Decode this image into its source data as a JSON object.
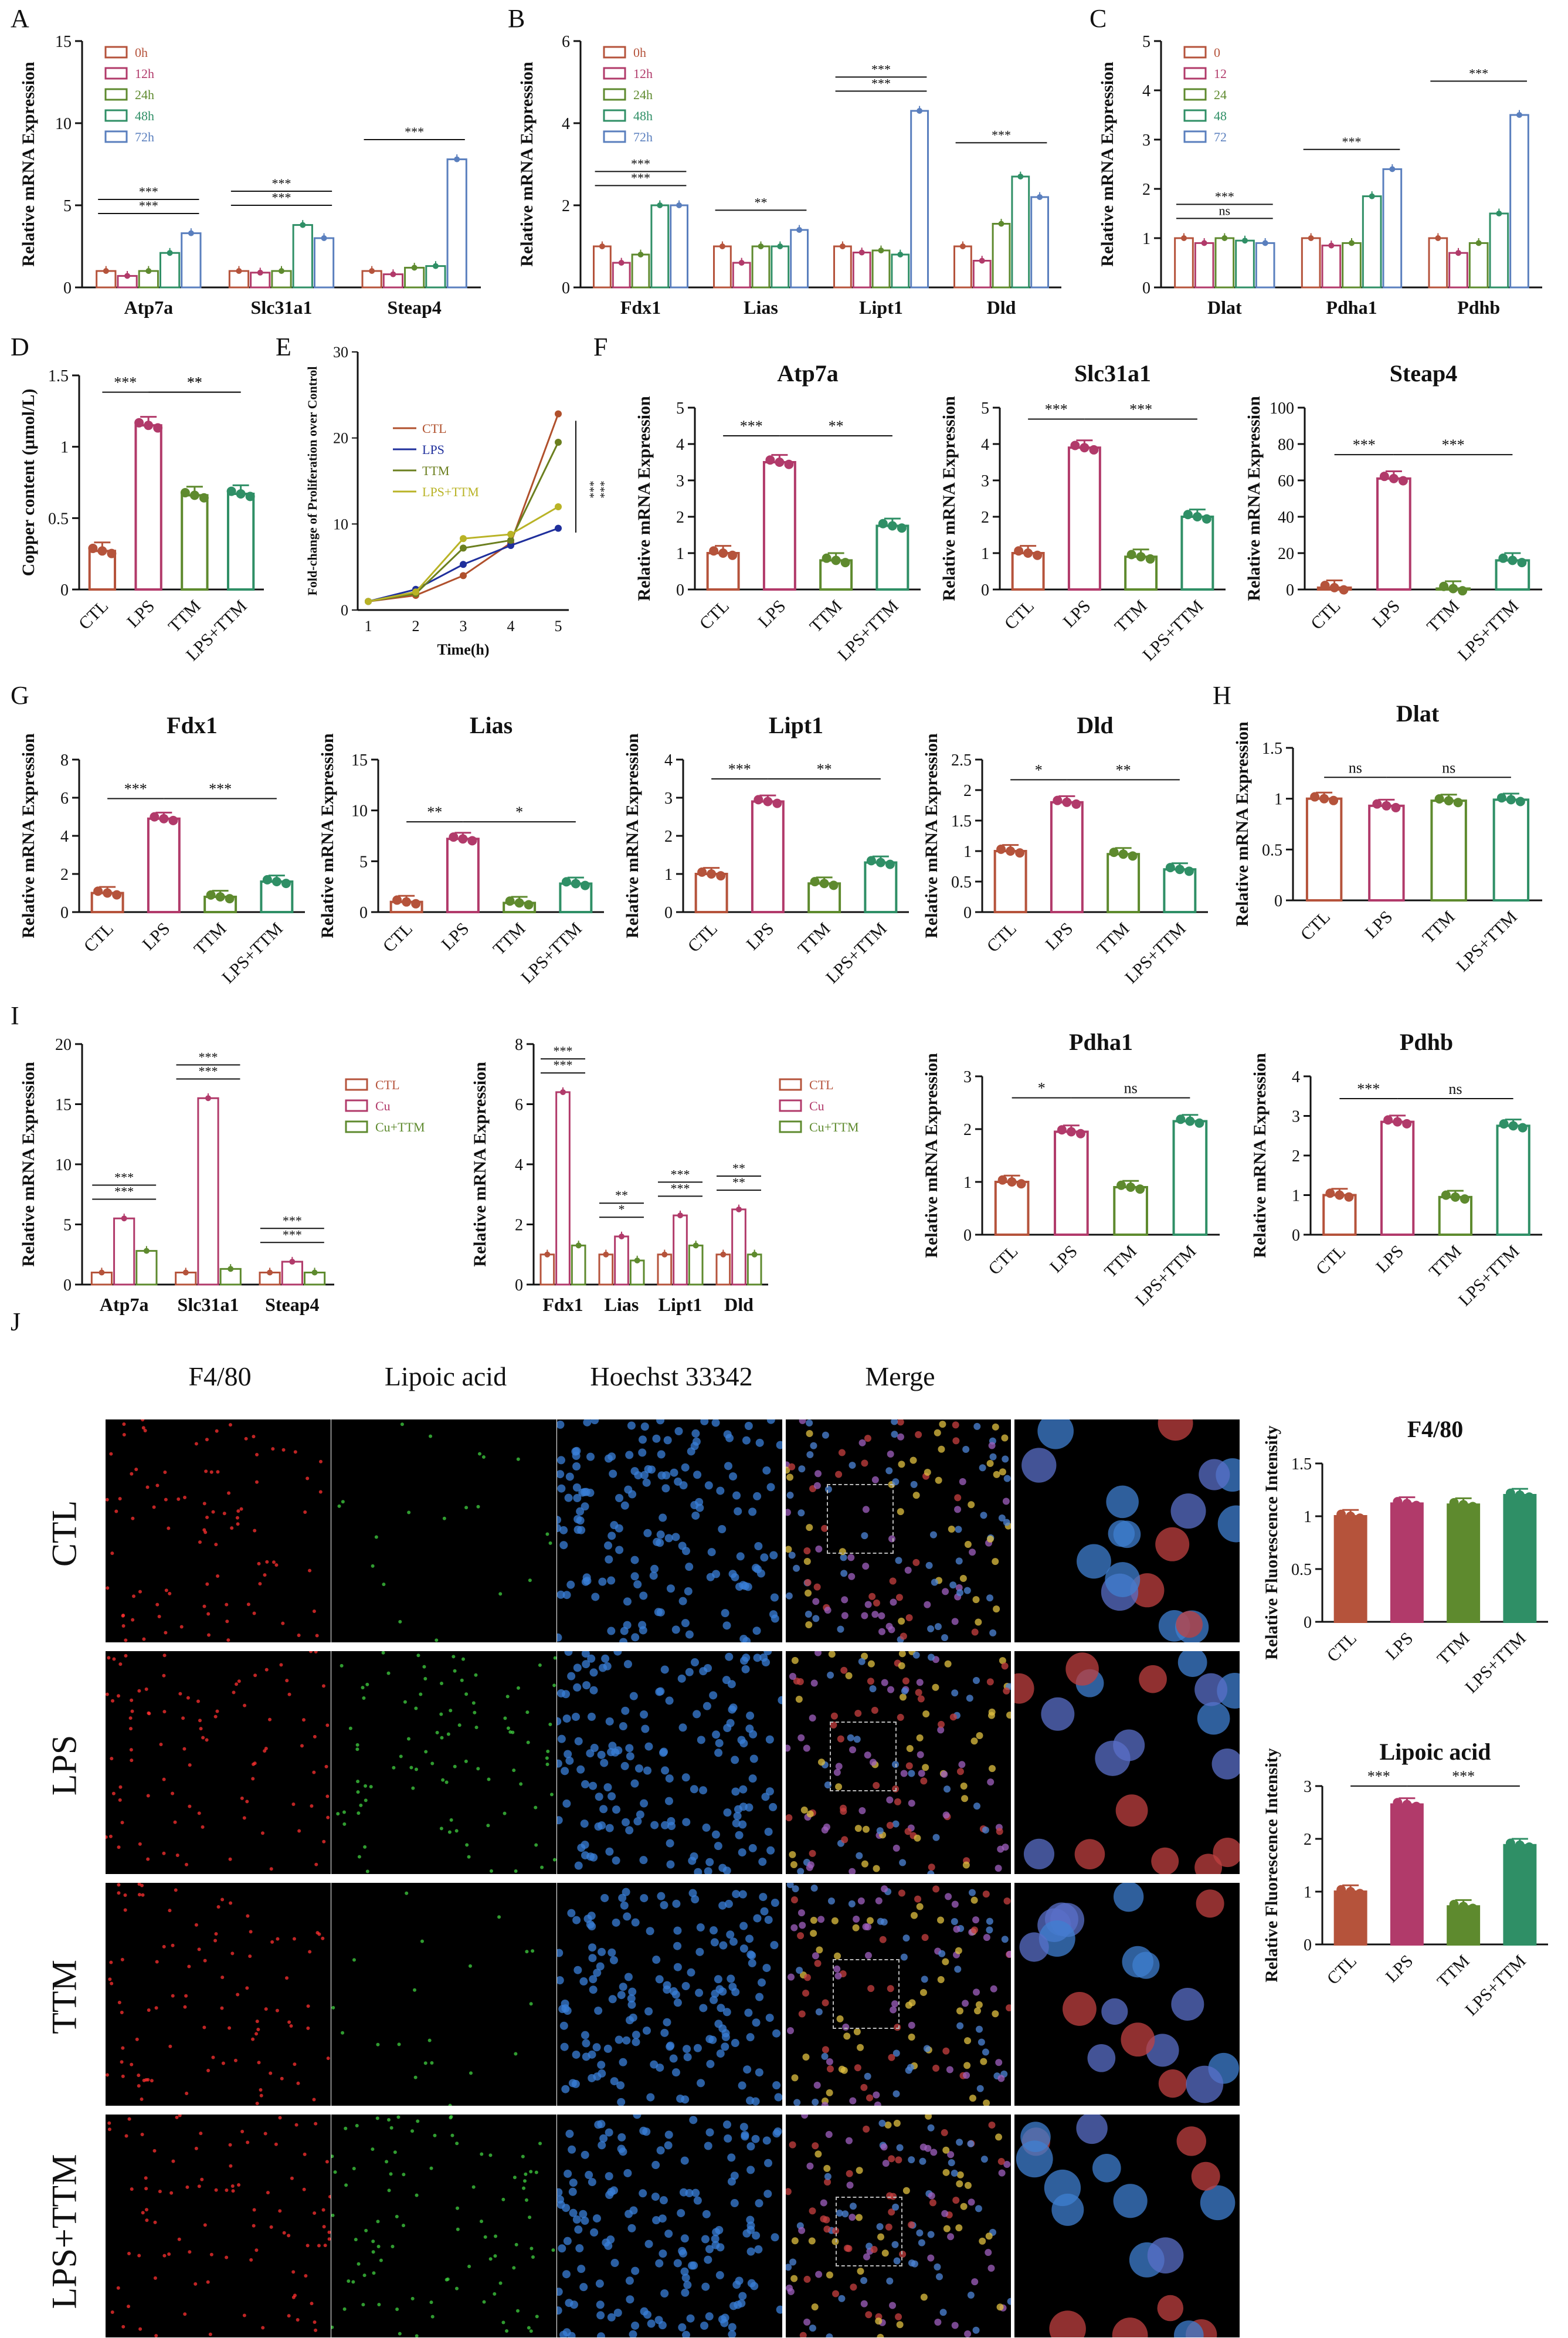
{
  "panel_letters": {
    "A": "A",
    "B": "B",
    "C": "C",
    "D": "D",
    "E": "E",
    "F": "F",
    "G": "G",
    "H": "H",
    "I": "I",
    "J": "J"
  },
  "palette": {
    "red": "#b5533b",
    "pink": "#b13a6a",
    "olive": "#5e8a2e",
    "green": "#2f8f66",
    "blue": "#5a7fbe",
    "navy": "#1f2f9c",
    "olive_line": "#6b7f1f",
    "yellow_line": "#b9b326",
    "brown_line": "#b0502c"
  },
  "micro": {
    "columns": [
      "F4/80",
      "Lipoic acid",
      "Hoechst 33342",
      "Merge"
    ],
    "rows": [
      "CTL",
      "LPS",
      "TTM",
      "LPS+TTM"
    ]
  },
  "chart_data": [
    {
      "id": "A",
      "type": "bar",
      "title": "",
      "ylabel": "Relative mRNA Expression",
      "ylim": [
        0,
        15
      ],
      "yticks": [
        0,
        5,
        10,
        15
      ],
      "categories": [
        "Atp7a",
        "Slc31a1",
        "Steap4"
      ],
      "series": [
        {
          "name": "0h",
          "values": [
            1,
            1,
            1
          ]
        },
        {
          "name": "12h",
          "values": [
            0.7,
            0.9,
            0.8
          ]
        },
        {
          "name": "24h",
          "values": [
            1,
            1,
            1.2
          ]
        },
        {
          "name": "48h",
          "values": [
            2.1,
            3.8,
            1.3
          ]
        },
        {
          "name": "72h",
          "values": [
            3.3,
            3.0,
            7.8
          ]
        }
      ],
      "annotations": [
        "***",
        "***",
        "***",
        "***",
        "***"
      ],
      "legend": "top-left"
    },
    {
      "id": "B",
      "type": "bar",
      "title": "",
      "ylabel": "Relative mRNA Expression",
      "ylim": [
        0,
        6
      ],
      "yticks": [
        0,
        2,
        4,
        6
      ],
      "categories": [
        "Fdx1",
        "Lias",
        "Lipt1",
        "Dld"
      ],
      "series": [
        {
          "name": "0h",
          "values": [
            1,
            1,
            1,
            1
          ]
        },
        {
          "name": "12h",
          "values": [
            0.6,
            0.6,
            0.85,
            0.65
          ]
        },
        {
          "name": "24h",
          "values": [
            0.8,
            1.0,
            0.9,
            1.55
          ]
        },
        {
          "name": "48h",
          "values": [
            2.0,
            1.0,
            0.8,
            2.7
          ]
        },
        {
          "name": "72h",
          "values": [
            2.0,
            1.4,
            4.3,
            2.2
          ]
        }
      ],
      "annotations": [
        "***",
        "***",
        "**",
        "***",
        "***",
        "***"
      ],
      "legend": "top-left"
    },
    {
      "id": "C",
      "type": "bar",
      "title": "",
      "ylabel": "Relative mRNA Expression",
      "ylim": [
        0,
        5
      ],
      "yticks": [
        0,
        1,
        2,
        3,
        4,
        5
      ],
      "categories": [
        "Dlat",
        "Pdha1",
        "Pdhb"
      ],
      "series": [
        {
          "name": "0",
          "values": [
            1,
            1,
            1
          ]
        },
        {
          "name": "12",
          "values": [
            0.9,
            0.85,
            0.7
          ]
        },
        {
          "name": "24",
          "values": [
            1,
            0.9,
            0.9
          ]
        },
        {
          "name": "48",
          "values": [
            0.95,
            1.85,
            1.5
          ]
        },
        {
          "name": "72",
          "values": [
            0.9,
            2.4,
            3.5
          ]
        }
      ],
      "annotations": [
        "ns",
        "***",
        "***",
        "***"
      ],
      "legend": "top-left"
    },
    {
      "id": "D",
      "type": "bar",
      "title": "",
      "ylabel": "Copper content (μmol/L)",
      "ylim": [
        0,
        1.5
      ],
      "yticks": [
        0,
        0.5,
        1,
        1.5
      ],
      "categories": [
        "CTL",
        "LPS",
        "TTM",
        "LPS+TTM"
      ],
      "values": [
        0.27,
        1.15,
        0.66,
        0.67
      ],
      "annotations": [
        "***",
        "**",
        "**"
      ]
    },
    {
      "id": "E",
      "type": "line",
      "title": "",
      "ylabel": "Fold-change of Proliferation over Control",
      "xlabel": "Time(h)",
      "ylim": [
        0,
        30
      ],
      "yticks": [
        0,
        10,
        20,
        30
      ],
      "x": [
        1,
        2,
        3,
        4,
        5
      ],
      "series": [
        {
          "name": "CTL",
          "values": [
            1,
            1.7,
            4.0,
            7.8,
            22.8
          ]
        },
        {
          "name": "LPS",
          "values": [
            1,
            2.4,
            5.3,
            7.5,
            9.5
          ]
        },
        {
          "name": "TTM",
          "values": [
            1,
            1.9,
            7.2,
            8.1,
            19.5
          ]
        },
        {
          "name": "LPS+TTM",
          "values": [
            1,
            2.1,
            8.3,
            8.8,
            12.0
          ]
        }
      ],
      "annotations": [
        "***",
        "***"
      ],
      "legend": "top-left"
    },
    {
      "id": "F1",
      "type": "bar",
      "title": "Atp7a",
      "ylabel": "Relative mRNA Expression",
      "ylim": [
        0,
        5
      ],
      "yticks": [
        0,
        1,
        2,
        3,
        4,
        5
      ],
      "categories": [
        "CTL",
        "LPS",
        "TTM",
        "LPS+TTM"
      ],
      "values": [
        1,
        3.5,
        0.8,
        1.75
      ],
      "annotations": [
        "***",
        "**"
      ]
    },
    {
      "id": "F2",
      "type": "bar",
      "title": "Slc31a1",
      "ylabel": "Relative mRNA Expression",
      "ylim": [
        0,
        5
      ],
      "yticks": [
        0,
        1,
        2,
        3,
        4,
        5
      ],
      "categories": [
        "CTL",
        "LPS",
        "TTM",
        "LPS+TTM"
      ],
      "values": [
        1,
        3.9,
        0.9,
        2.0
      ],
      "annotations": [
        "***",
        "***"
      ]
    },
    {
      "id": "F3",
      "type": "bar",
      "title": "Steap4",
      "ylabel": "Relative mRNA Expression",
      "ylim": [
        0,
        100
      ],
      "yticks": [
        0,
        20,
        40,
        60,
        80,
        100
      ],
      "categories": [
        "CTL",
        "LPS",
        "TTM",
        "LPS+TTM"
      ],
      "values": [
        1,
        61,
        0.5,
        16
      ],
      "annotations": [
        "***",
        "***"
      ]
    },
    {
      "id": "G1",
      "type": "bar",
      "title": "Fdx1",
      "ylabel": "Relative mRNA Expression",
      "ylim": [
        0,
        8
      ],
      "yticks": [
        0,
        2,
        4,
        6,
        8
      ],
      "categories": [
        "CTL",
        "LPS",
        "TTM",
        "LPS+TTM"
      ],
      "values": [
        1,
        4.9,
        0.8,
        1.6
      ],
      "annotations": [
        "***",
        "***"
      ]
    },
    {
      "id": "G2",
      "type": "bar",
      "title": "Lias",
      "ylabel": "Relative mRNA Expression",
      "ylim": [
        0,
        15
      ],
      "yticks": [
        0,
        5,
        10,
        15
      ],
      "categories": [
        "CTL",
        "LPS",
        "TTM",
        "LPS+TTM"
      ],
      "values": [
        1,
        7.2,
        0.9,
        2.8
      ],
      "annotations": [
        "**",
        "*"
      ]
    },
    {
      "id": "G3",
      "type": "bar",
      "title": "Lipt1",
      "ylabel": "Relative mRNA Expression",
      "ylim": [
        0,
        4
      ],
      "yticks": [
        0,
        1,
        2,
        3,
        4
      ],
      "categories": [
        "CTL",
        "LPS",
        "TTM",
        "LPS+TTM"
      ],
      "values": [
        1,
        2.9,
        0.75,
        1.3
      ],
      "annotations": [
        "***",
        "**"
      ]
    },
    {
      "id": "G4",
      "type": "bar",
      "title": "Dld",
      "ylabel": "Relative mRNA Expression",
      "ylim": [
        0,
        2.5
      ],
      "yticks": [
        0,
        0.5,
        1,
        1.5,
        2,
        2.5
      ],
      "categories": [
        "CTL",
        "LPS",
        "TTM",
        "LPS+TTM"
      ],
      "values": [
        1,
        1.8,
        0.95,
        0.7
      ],
      "annotations": [
        "*",
        "**"
      ]
    },
    {
      "id": "H",
      "type": "bar",
      "title": "Dlat",
      "ylabel": "Relative mRNA Expression",
      "ylim": [
        0,
        1.5
      ],
      "yticks": [
        0,
        0.5,
        1,
        1.5
      ],
      "categories": [
        "CTL",
        "LPS",
        "TTM",
        "LPS+TTM"
      ],
      "values": [
        1,
        0.93,
        0.98,
        0.99
      ],
      "annotations": [
        "ns",
        "ns"
      ]
    },
    {
      "id": "I1",
      "type": "bar",
      "title": "",
      "ylabel": "Relative mRNA Expression",
      "ylim": [
        0,
        20
      ],
      "yticks": [
        0,
        5,
        10,
        15,
        20
      ],
      "categories": [
        "Atp7a",
        "Slc31a1",
        "Steap4"
      ],
      "series": [
        {
          "name": "CTL",
          "values": [
            1,
            1,
            1
          ]
        },
        {
          "name": "Cu",
          "values": [
            5.5,
            15.5,
            1.9
          ]
        },
        {
          "name": "Cu+TTM",
          "values": [
            2.8,
            1.3,
            1.0
          ]
        }
      ],
      "annotations": [
        "***",
        "***",
        "***",
        "***",
        "***",
        "***"
      ],
      "legend": "right"
    },
    {
      "id": "I2",
      "type": "bar",
      "title": "",
      "ylabel": "Relative mRNA Expression",
      "ylim": [
        0,
        8
      ],
      "yticks": [
        0,
        2,
        4,
        6,
        8
      ],
      "categories": [
        "Fdx1",
        "Lias",
        "Lipt1",
        "Dld"
      ],
      "series": [
        {
          "name": "CTL",
          "values": [
            1,
            1,
            1,
            1
          ]
        },
        {
          "name": "Cu",
          "values": [
            6.4,
            1.6,
            2.3,
            2.5
          ]
        },
        {
          "name": "Cu+TTM",
          "values": [
            1.3,
            0.8,
            1.3,
            1.0
          ]
        }
      ],
      "annotations": [
        "***",
        "***",
        "*",
        "**",
        "***",
        "***",
        "**",
        "**"
      ],
      "legend": "right"
    },
    {
      "id": "I3",
      "type": "bar",
      "title": "Pdha1",
      "ylabel": "Relative mRNA Expression",
      "ylim": [
        0,
        3
      ],
      "yticks": [
        0,
        1,
        2,
        3
      ],
      "categories": [
        "CTL",
        "LPS",
        "TTM",
        "LPS+TTM"
      ],
      "values": [
        1,
        1.95,
        0.9,
        2.15
      ],
      "annotations": [
        "*",
        "ns"
      ]
    },
    {
      "id": "I4",
      "type": "bar",
      "title": "Pdhb",
      "ylabel": "Relative mRNA Expression",
      "ylim": [
        0,
        4
      ],
      "yticks": [
        0,
        1,
        2,
        3,
        4
      ],
      "categories": [
        "CTL",
        "LPS",
        "TTM",
        "LPS+TTM"
      ],
      "values": [
        1,
        2.85,
        0.95,
        2.75
      ],
      "annotations": [
        "***",
        "ns"
      ]
    },
    {
      "id": "J1",
      "type": "bar",
      "title": "F4/80",
      "ylabel": "Relative Fluorescence Intensity",
      "ylim": [
        0,
        1.5
      ],
      "yticks": [
        0,
        0.5,
        1,
        1.5
      ],
      "categories": [
        "CTL",
        "LPS",
        "TTM",
        "LPS+TTM"
      ],
      "values": [
        1.0,
        1.12,
        1.11,
        1.2
      ],
      "annotations": []
    },
    {
      "id": "J2",
      "type": "bar",
      "title": "Lipoic acid",
      "ylabel": "Relative Fluorescence Intensity",
      "ylim": [
        0,
        3
      ],
      "yticks": [
        0,
        1,
        2,
        3
      ],
      "categories": [
        "CTL",
        "LPS",
        "TTM",
        "LPS+TTM"
      ],
      "values": [
        1.0,
        2.65,
        0.72,
        1.88
      ],
      "annotations": [
        "***",
        "***"
      ]
    }
  ]
}
